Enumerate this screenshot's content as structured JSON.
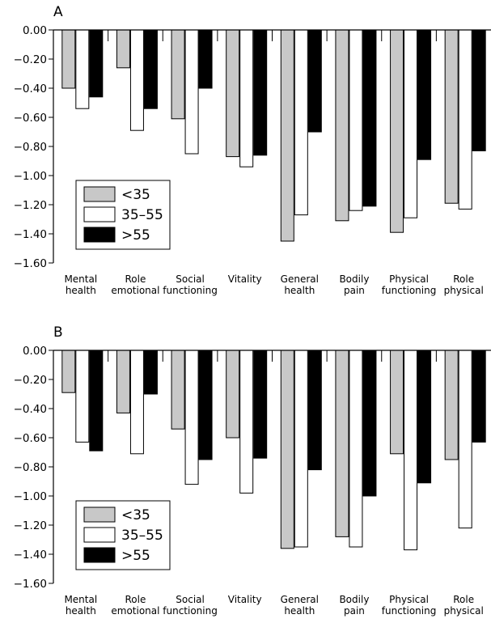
{
  "chart_data": [
    {
      "type": "bar",
      "panel": "A",
      "categories": [
        [
          "Mental",
          "health"
        ],
        [
          "Role",
          "emotional"
        ],
        [
          "Social",
          "functioning"
        ],
        [
          "Vitality"
        ],
        [
          "General",
          "health"
        ],
        [
          "Bodily",
          "pain"
        ],
        [
          "Physical",
          "functioning"
        ],
        [
          "Role",
          "physical"
        ]
      ],
      "series": [
        {
          "name": "<35",
          "color": "#c8c8c8",
          "values": [
            -0.4,
            -0.26,
            -0.61,
            -0.87,
            -1.45,
            -1.31,
            -1.39,
            -1.19
          ]
        },
        {
          "name": "35–55",
          "color": "#ffffff",
          "values": [
            -0.54,
            -0.69,
            -0.85,
            -0.94,
            -1.27,
            -1.24,
            -1.29,
            -1.23
          ]
        },
        {
          "name": ">55",
          "color": "#000000",
          "values": [
            -0.46,
            -0.54,
            -0.4,
            -0.86,
            -0.7,
            -1.21,
            -0.89,
            -0.83
          ]
        }
      ],
      "ylim": [
        -1.6,
        0
      ],
      "yticks": [
        "0.00",
        "−0.20",
        "−0.40",
        "−0.60",
        "−0.80",
        "−1.00",
        "−1.20",
        "−1.40",
        "−1.60"
      ],
      "legend_position": "lower-left"
    },
    {
      "type": "bar",
      "panel": "B",
      "categories": [
        [
          "Mental",
          "health"
        ],
        [
          "Role",
          "emotional"
        ],
        [
          "Social",
          "functioning"
        ],
        [
          "Vitality"
        ],
        [
          "General",
          "health"
        ],
        [
          "Bodily",
          "pain"
        ],
        [
          "Physical",
          "functioning"
        ],
        [
          "Role",
          "physical"
        ]
      ],
      "series": [
        {
          "name": "<35",
          "color": "#c8c8c8",
          "values": [
            -0.29,
            -0.43,
            -0.54,
            -0.6,
            -1.36,
            -1.28,
            -0.71,
            -0.75
          ]
        },
        {
          "name": "35–55",
          "color": "#ffffff",
          "values": [
            -0.63,
            -0.71,
            -0.92,
            -0.98,
            -1.35,
            -1.35,
            -1.37,
            -1.22
          ]
        },
        {
          "name": ">55",
          "color": "#000000",
          "values": [
            -0.69,
            -0.3,
            -0.75,
            -0.74,
            -0.82,
            -1.0,
            -0.91,
            -0.63
          ]
        }
      ],
      "ylim": [
        -1.6,
        0
      ],
      "yticks": [
        "0.00",
        "−0.20",
        "−0.40",
        "−0.60",
        "−0.80",
        "−1.00",
        "−1.20",
        "−1.40",
        "−1.60"
      ],
      "legend_position": "lower-left"
    }
  ]
}
